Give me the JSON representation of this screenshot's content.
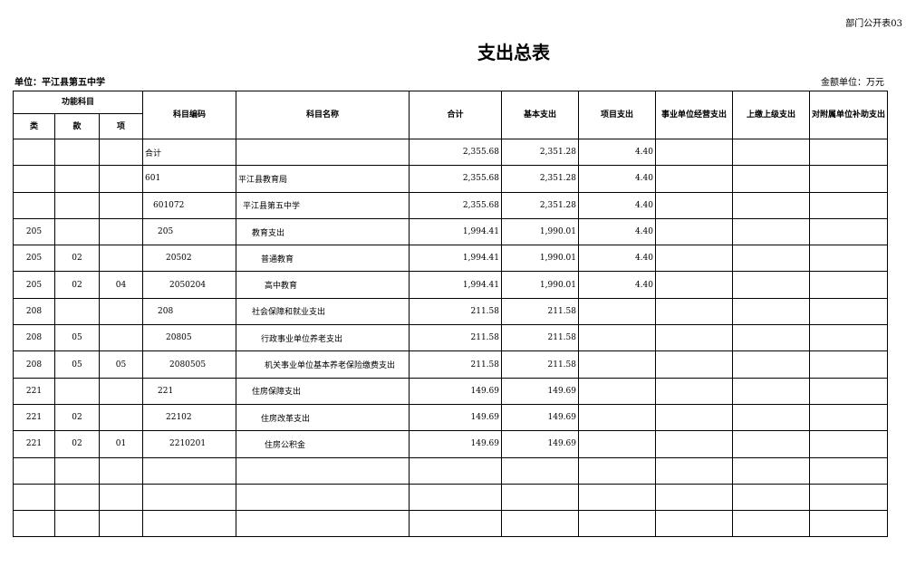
{
  "header": {
    "form_no": "部门公开表03",
    "title": "支出总表",
    "unit": "单位：平江县第五中学",
    "money_unit": "金额单位：万元"
  },
  "columns": {
    "func": "功能科目",
    "lei": "类",
    "kuan": "款",
    "xiang": "项",
    "code": "科目编码",
    "name": "科目名称",
    "total": "合计",
    "basic": "基本支出",
    "project": "项目支出",
    "business": "事业单位经营支出",
    "upper": "上缴上级支出",
    "subsidy": "对附属单位补助支出"
  },
  "rows": [
    {
      "lei": "",
      "kuan": "",
      "xiang": "",
      "code": "合计",
      "name": "",
      "total": "2,355.68",
      "basic": "2,351.28",
      "project": "4.40",
      "business": "",
      "upper": "",
      "subsidy": ""
    },
    {
      "lei": "",
      "kuan": "",
      "xiang": "",
      "code": "601",
      "name": "平江县教育局",
      "total": "2,355.68",
      "basic": "2,351.28",
      "project": "4.40",
      "business": "",
      "upper": "",
      "subsidy": ""
    },
    {
      "lei": "",
      "kuan": "",
      "xiang": "",
      "code": "601072",
      "name": "平江县第五中学",
      "total": "2,355.68",
      "basic": "2,351.28",
      "project": "4.40",
      "business": "",
      "upper": "",
      "subsidy": ""
    },
    {
      "lei": "205",
      "kuan": "",
      "xiang": "",
      "code": "205",
      "name": "教育支出",
      "total": "1,994.41",
      "basic": "1,990.01",
      "project": "4.40",
      "business": "",
      "upper": "",
      "subsidy": ""
    },
    {
      "lei": "205",
      "kuan": "02",
      "xiang": "",
      "code": "20502",
      "name": "普通教育",
      "total": "1,994.41",
      "basic": "1,990.01",
      "project": "4.40",
      "business": "",
      "upper": "",
      "subsidy": ""
    },
    {
      "lei": "205",
      "kuan": "02",
      "xiang": "04",
      "code": "2050204",
      "name": "高中教育",
      "total": "1,994.41",
      "basic": "1,990.01",
      "project": "4.40",
      "business": "",
      "upper": "",
      "subsidy": ""
    },
    {
      "lei": "208",
      "kuan": "",
      "xiang": "",
      "code": "208",
      "name": "社会保障和就业支出",
      "total": "211.58",
      "basic": "211.58",
      "project": "",
      "business": "",
      "upper": "",
      "subsidy": ""
    },
    {
      "lei": "208",
      "kuan": "05",
      "xiang": "",
      "code": "20805",
      "name": "行政事业单位养老支出",
      "total": "211.58",
      "basic": "211.58",
      "project": "",
      "business": "",
      "upper": "",
      "subsidy": ""
    },
    {
      "lei": "208",
      "kuan": "05",
      "xiang": "05",
      "code": "2080505",
      "name": "机关事业单位基本养老保险缴费支出",
      "total": "211.58",
      "basic": "211.58",
      "project": "",
      "business": "",
      "upper": "",
      "subsidy": ""
    },
    {
      "lei": "221",
      "kuan": "",
      "xiang": "",
      "code": "221",
      "name": "住房保障支出",
      "total": "149.69",
      "basic": "149.69",
      "project": "",
      "business": "",
      "upper": "",
      "subsidy": ""
    },
    {
      "lei": "221",
      "kuan": "02",
      "xiang": "",
      "code": "22102",
      "name": "住房改革支出",
      "total": "149.69",
      "basic": "149.69",
      "project": "",
      "business": "",
      "upper": "",
      "subsidy": ""
    },
    {
      "lei": "221",
      "kuan": "02",
      "xiang": "01",
      "code": "2210201",
      "name": "住房公积金",
      "total": "149.69",
      "basic": "149.69",
      "project": "",
      "business": "",
      "upper": "",
      "subsidy": ""
    },
    {
      "lei": "",
      "kuan": "",
      "xiang": "",
      "code": "",
      "name": "",
      "total": "",
      "basic": "",
      "project": "",
      "business": "",
      "upper": "",
      "subsidy": ""
    },
    {
      "lei": "",
      "kuan": "",
      "xiang": "",
      "code": "",
      "name": "",
      "total": "",
      "basic": "",
      "project": "",
      "business": "",
      "upper": "",
      "subsidy": ""
    },
    {
      "lei": "",
      "kuan": "",
      "xiang": "",
      "code": "",
      "name": "",
      "total": "",
      "basic": "",
      "project": "",
      "business": "",
      "upper": "",
      "subsidy": ""
    }
  ]
}
